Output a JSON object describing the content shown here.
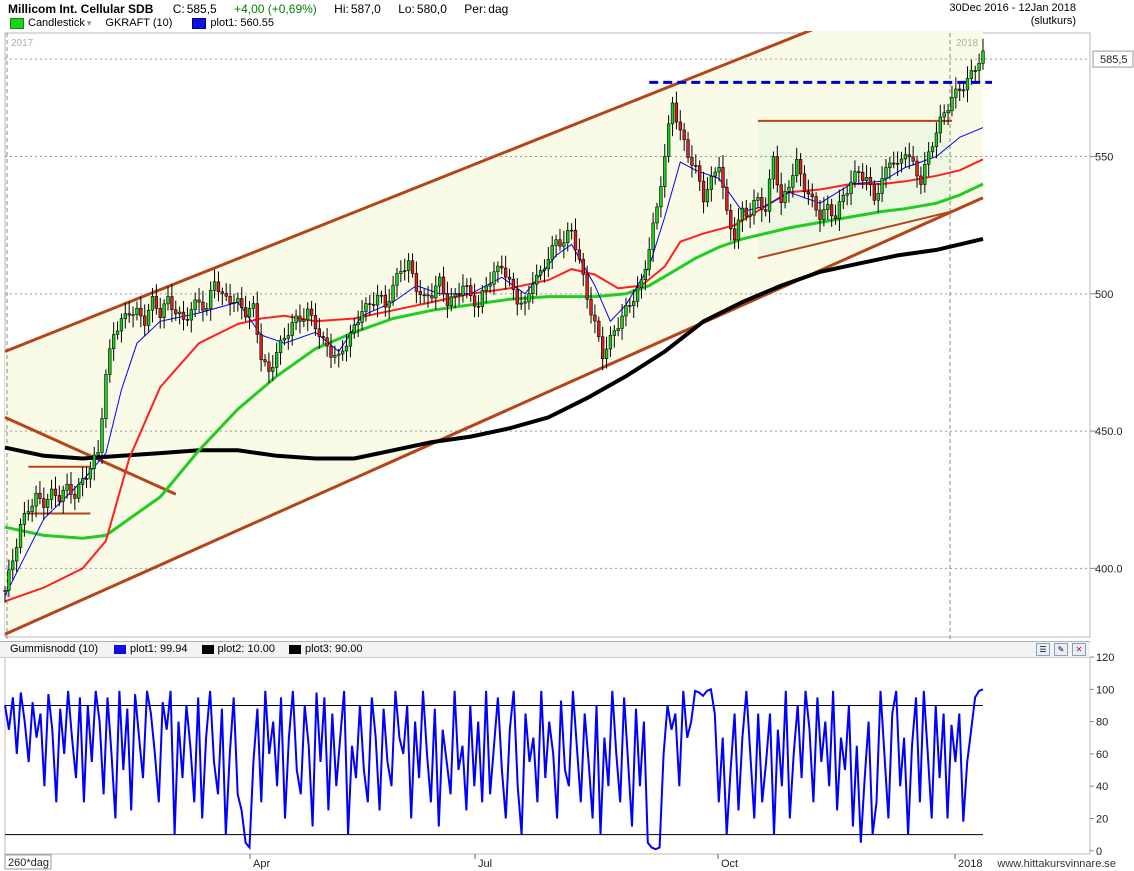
{
  "header": {
    "title": "Millicom Int. Cellular SDB",
    "close_label": "C:",
    "close": "585,5",
    "change": "+4,00 (+0,69%)",
    "high_label": "Hi:",
    "high": "587,0",
    "low_label": "Lo:",
    "low": "580,0",
    "period_label": "Per:",
    "period": "dag",
    "date_range": "30Dec 2016 - 12Jan 2018",
    "price_mode": "(slutkurs)",
    "legend": [
      {
        "label": "Candlestick",
        "color": "#19d319"
      },
      {
        "label": "GKRAFT (10)",
        "color": ""
      },
      {
        "label": "plot1: 560.55",
        "color": "#0000ff"
      }
    ]
  },
  "indicator_header": {
    "legend": [
      {
        "label": "Gummisnodd (10)",
        "color": ""
      },
      {
        "label": "plot1: 99.94",
        "color": "#0000ff"
      },
      {
        "label": "plot2: 10.00",
        "color": "#000000"
      },
      {
        "label": "plot3: 90.00",
        "color": "#000000"
      }
    ]
  },
  "footer": {
    "source": "www.hittakursvinnare.se"
  },
  "colors": {
    "up": "#19d319",
    "down": "#e02020",
    "trend": "#b5441a",
    "ma_fast": "#0000ff",
    "ma_mid": "#ff2020",
    "ma_slow": "#22cc22",
    "ma_long": "#000000",
    "osc": "#0000ff"
  },
  "chart_data": [
    {
      "type": "candlestick",
      "title": "Millicom Int. Cellular SDB",
      "x_labels": [
        "2017",
        "Apr",
        "Jul",
        "Oct",
        "2018"
      ],
      "x_corner_label": "260*dag",
      "year_marks": [
        "2017",
        "2018"
      ],
      "y_ticks": [
        400,
        450,
        500,
        550
      ],
      "y_tick_labels": [
        "400.0",
        "450.0",
        "500",
        "550"
      ],
      "ylim": [
        375,
        595
      ],
      "last_price": 585.5,
      "last_price_label": "585,5",
      "resistance": 577,
      "close_series": [
        [
          0,
          392
        ],
        [
          2,
          402
        ],
        [
          4,
          414
        ],
        [
          6,
          422
        ],
        [
          8,
          427
        ],
        [
          10,
          425
        ],
        [
          12,
          427
        ],
        [
          14,
          425
        ],
        [
          16,
          428
        ],
        [
          18,
          427
        ],
        [
          20,
          433
        ],
        [
          22,
          438
        ],
        [
          24,
          442
        ],
        [
          26,
          469
        ],
        [
          28,
          485
        ],
        [
          30,
          490
        ],
        [
          32,
          495
        ],
        [
          34,
          494
        ],
        [
          36,
          490
        ],
        [
          38,
          496
        ],
        [
          40,
          492
        ],
        [
          42,
          498
        ],
        [
          44,
          495
        ],
        [
          46,
          491
        ],
        [
          48,
          494
        ],
        [
          50,
          496
        ],
        [
          52,
          493
        ],
        [
          54,
          506
        ],
        [
          56,
          500
        ],
        [
          58,
          499
        ],
        [
          60,
          496
        ],
        [
          62,
          492
        ],
        [
          64,
          494
        ],
        [
          66,
          478
        ],
        [
          68,
          472
        ],
        [
          70,
          480
        ],
        [
          72,
          483
        ],
        [
          74,
          488
        ],
        [
          76,
          490
        ],
        [
          78,
          494
        ],
        [
          80,
          490
        ],
        [
          82,
          483
        ],
        [
          84,
          478
        ],
        [
          86,
          475
        ],
        [
          88,
          482
        ],
        [
          90,
          488
        ],
        [
          92,
          496
        ],
        [
          94,
          496
        ],
        [
          96,
          499
        ],
        [
          98,
          494
        ],
        [
          100,
          502
        ],
        [
          102,
          510
        ],
        [
          104,
          512
        ],
        [
          106,
          503
        ],
        [
          108,
          497
        ],
        [
          110,
          499
        ],
        [
          112,
          504
        ],
        [
          114,
          498
        ],
        [
          116,
          500
        ],
        [
          118,
          504
        ],
        [
          120,
          498
        ],
        [
          122,
          494
        ],
        [
          124,
          503
        ],
        [
          126,
          508
        ],
        [
          128,
          512
        ],
        [
          130,
          504
        ],
        [
          132,
          497
        ],
        [
          134,
          494
        ],
        [
          136,
          505
        ],
        [
          138,
          508
        ],
        [
          140,
          515
        ],
        [
          142,
          519
        ],
        [
          144,
          518
        ],
        [
          146,
          522
        ],
        [
          148,
          512
        ],
        [
          150,
          500
        ],
        [
          152,
          490
        ],
        [
          154,
          478
        ],
        [
          156,
          482
        ],
        [
          158,
          488
        ],
        [
          160,
          494
        ],
        [
          162,
          500
        ],
        [
          164,
          505
        ],
        [
          166,
          517
        ],
        [
          168,
          530
        ],
        [
          170,
          549
        ],
        [
          172,
          570
        ],
        [
          174,
          560
        ],
        [
          176,
          552
        ],
        [
          178,
          545
        ],
        [
          180,
          534
        ],
        [
          182,
          540
        ],
        [
          184,
          548
        ],
        [
          186,
          530
        ],
        [
          188,
          522
        ],
        [
          190,
          530
        ],
        [
          192,
          528
        ],
        [
          194,
          534
        ],
        [
          196,
          530
        ],
        [
          198,
          552
        ],
        [
          200,
          533
        ],
        [
          202,
          540
        ],
        [
          204,
          546
        ],
        [
          206,
          538
        ],
        [
          208,
          534
        ],
        [
          210,
          530
        ],
        [
          212,
          532
        ],
        [
          214,
          528
        ],
        [
          216,
          534
        ],
        [
          218,
          540
        ],
        [
          220,
          545
        ],
        [
          222,
          543
        ],
        [
          224,
          536
        ],
        [
          226,
          540
        ],
        [
          228,
          548
        ],
        [
          230,
          545
        ],
        [
          232,
          553
        ],
        [
          234,
          548
        ],
        [
          236,
          542
        ],
        [
          238,
          550
        ],
        [
          240,
          558
        ],
        [
          242,
          565
        ],
        [
          244,
          572
        ],
        [
          246,
          576
        ],
        [
          248,
          578
        ],
        [
          250,
          582
        ],
        [
          252,
          585.5
        ]
      ],
      "ma_fast": [
        [
          0,
          390
        ],
        [
          10,
          418
        ],
        [
          20,
          432
        ],
        [
          26,
          442
        ],
        [
          30,
          465
        ],
        [
          34,
          482
        ],
        [
          40,
          490
        ],
        [
          50,
          493
        ],
        [
          60,
          497
        ],
        [
          66,
          485
        ],
        [
          72,
          482
        ],
        [
          80,
          486
        ],
        [
          86,
          479
        ],
        [
          92,
          492
        ],
        [
          100,
          497
        ],
        [
          106,
          503
        ],
        [
          112,
          500
        ],
        [
          120,
          500
        ],
        [
          128,
          506
        ],
        [
          134,
          500
        ],
        [
          142,
          514
        ],
        [
          146,
          518
        ],
        [
          152,
          503
        ],
        [
          156,
          490
        ],
        [
          160,
          496
        ],
        [
          166,
          510
        ],
        [
          170,
          528
        ],
        [
          174,
          548
        ],
        [
          178,
          545
        ],
        [
          184,
          542
        ],
        [
          190,
          530
        ],
        [
          196,
          532
        ],
        [
          202,
          537
        ],
        [
          210,
          533
        ],
        [
          218,
          540
        ],
        [
          226,
          541
        ],
        [
          232,
          546
        ],
        [
          240,
          550
        ],
        [
          246,
          557
        ],
        [
          252,
          560.55
        ]
      ],
      "ma_mid": [
        [
          0,
          388
        ],
        [
          10,
          393
        ],
        [
          20,
          400
        ],
        [
          26,
          410
        ],
        [
          32,
          440
        ],
        [
          40,
          466
        ],
        [
          50,
          482
        ],
        [
          60,
          489
        ],
        [
          66,
          491
        ],
        [
          72,
          492
        ],
        [
          80,
          490
        ],
        [
          90,
          491
        ],
        [
          100,
          494
        ],
        [
          110,
          497
        ],
        [
          120,
          500
        ],
        [
          130,
          502
        ],
        [
          140,
          505
        ],
        [
          146,
          509
        ],
        [
          152,
          507
        ],
        [
          158,
          502
        ],
        [
          164,
          503
        ],
        [
          170,
          510
        ],
        [
          174,
          519
        ],
        [
          180,
          522
        ],
        [
          188,
          525
        ],
        [
          196,
          532
        ],
        [
          202,
          537
        ],
        [
          210,
          538
        ],
        [
          218,
          540
        ],
        [
          226,
          540
        ],
        [
          232,
          541
        ],
        [
          240,
          543
        ],
        [
          246,
          545
        ],
        [
          252,
          549
        ]
      ],
      "ma_slow": [
        [
          0,
          415
        ],
        [
          10,
          412
        ],
        [
          20,
          411
        ],
        [
          26,
          412
        ],
        [
          32,
          418
        ],
        [
          40,
          426
        ],
        [
          50,
          443
        ],
        [
          60,
          458
        ],
        [
          70,
          470
        ],
        [
          80,
          480
        ],
        [
          90,
          486
        ],
        [
          100,
          491
        ],
        [
          110,
          494
        ],
        [
          120,
          496
        ],
        [
          130,
          498
        ],
        [
          140,
          499
        ],
        [
          146,
          499
        ],
        [
          152,
          499
        ],
        [
          160,
          500
        ],
        [
          166,
          503
        ],
        [
          172,
          508
        ],
        [
          178,
          513
        ],
        [
          184,
          517
        ],
        [
          190,
          520
        ],
        [
          196,
          522
        ],
        [
          202,
          524
        ],
        [
          210,
          526
        ],
        [
          218,
          528
        ],
        [
          226,
          530
        ],
        [
          232,
          531
        ],
        [
          240,
          533
        ],
        [
          246,
          536
        ],
        [
          252,
          540
        ]
      ],
      "ma_long": [
        [
          0,
          444
        ],
        [
          10,
          441
        ],
        [
          20,
          440
        ],
        [
          30,
          441
        ],
        [
          40,
          442
        ],
        [
          50,
          443
        ],
        [
          60,
          443
        ],
        [
          70,
          441
        ],
        [
          80,
          440
        ],
        [
          90,
          440
        ],
        [
          100,
          443
        ],
        [
          110,
          446
        ],
        [
          120,
          448
        ],
        [
          130,
          451
        ],
        [
          140,
          455
        ],
        [
          150,
          462
        ],
        [
          160,
          470
        ],
        [
          170,
          479
        ],
        [
          180,
          490
        ],
        [
          190,
          497
        ],
        [
          200,
          503
        ],
        [
          210,
          508
        ],
        [
          220,
          511
        ],
        [
          230,
          514
        ],
        [
          240,
          516
        ],
        [
          252,
          520
        ]
      ],
      "trendlines": [
        {
          "x1": 0,
          "y1": 479,
          "x2": 252,
          "y2": 621
        },
        {
          "x1": 0,
          "y1": 376,
          "x2": 252,
          "y2": 535
        },
        {
          "x1": 0,
          "y1": 455,
          "x2": 44,
          "y2": 427
        },
        {
          "x1": 6,
          "y1": 437,
          "x2": 22,
          "y2": 437
        },
        {
          "x1": 6,
          "y1": 420,
          "x2": 22,
          "y2": 420
        },
        {
          "x1": 194,
          "y1": 563,
          "x2": 244,
          "y2": 563
        },
        {
          "x1": 194,
          "y1": 513,
          "x2": 244,
          "y2": 530
        }
      ]
    },
    {
      "type": "line",
      "title": "Gummisnodd (10)",
      "y_ticks": [
        0,
        20,
        40,
        60,
        80,
        100,
        120
      ],
      "ylim": [
        -2,
        120
      ],
      "levels": [
        10,
        90
      ],
      "values": [
        90,
        75,
        95,
        60,
        98,
        80,
        55,
        92,
        70,
        85,
        40,
        97,
        75,
        30,
        88,
        60,
        99,
        70,
        45,
        95,
        30,
        90,
        55,
        99,
        80,
        35,
        95,
        60,
        20,
        99,
        50,
        88,
        25,
        97,
        70,
        45,
        99,
        85,
        60,
        30,
        92,
        75,
        99,
        10,
        80,
        45,
        90,
        65,
        30,
        95,
        20,
        70,
        99,
        55,
        35,
        88,
        10,
        60,
        95,
        35,
        25,
        5,
        2,
        55,
        88,
        30,
        99,
        60,
        80,
        40,
        95,
        20,
        70,
        99,
        50,
        35,
        90,
        65,
        15,
        98,
        55,
        95,
        25,
        85,
        40,
        70,
        99,
        10,
        65,
        45,
        90,
        50,
        30,
        95,
        70,
        25,
        88,
        55,
        40,
        99,
        70,
        60,
        90,
        20,
        80,
        45,
        99,
        60,
        30,
        88,
        15,
        75,
        55,
        35,
        99,
        50,
        65,
        25,
        90,
        40,
        80,
        30,
        99,
        35,
        65,
        95,
        50,
        20,
        75,
        99,
        40,
        10,
        85,
        55,
        70,
        30,
        99,
        45,
        80,
        60,
        20,
        93,
        50,
        40,
        99,
        65,
        30,
        85,
        55,
        20,
        90,
        10,
        70,
        40,
        99,
        60,
        30,
        95,
        55,
        15,
        88,
        40,
        80,
        5,
        2,
        1,
        2,
        60,
        90,
        75,
        85,
        40,
        99,
        70,
        80,
        99,
        98,
        96,
        99,
        100,
        85,
        30,
        70,
        10,
        50,
        85,
        25,
        70,
        99,
        60,
        20,
        85,
        30,
        55,
        85,
        10,
        75,
        40,
        99,
        20,
        60,
        90,
        45,
        99,
        75,
        30,
        95,
        55,
        80,
        40,
        99,
        25,
        70,
        50,
        90,
        15,
        65,
        5,
        45,
        80,
        10,
        30,
        99,
        60,
        20,
        85,
        99,
        40,
        70,
        10,
        65,
        95,
        30,
        99,
        60,
        20,
        90,
        45,
        85,
        20,
        78,
        55,
        85,
        18,
        55,
        75,
        95,
        99,
        100
      ]
    }
  ]
}
